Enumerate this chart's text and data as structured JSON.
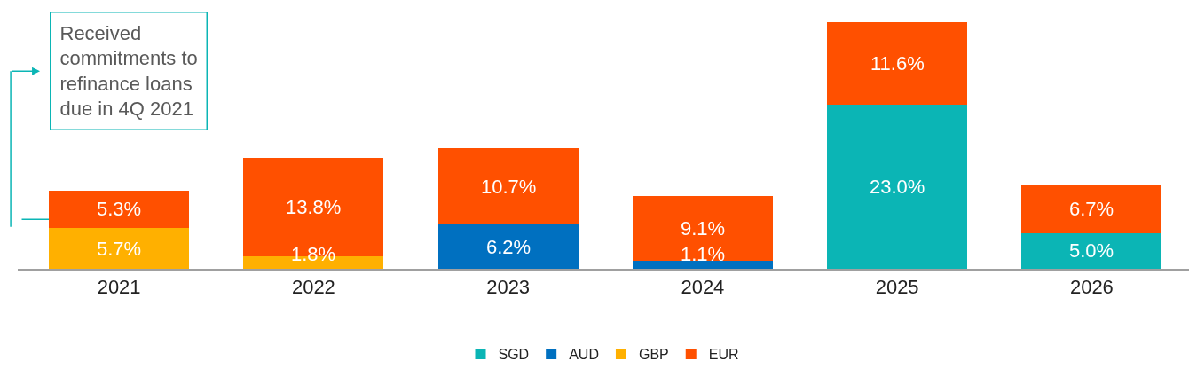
{
  "chart_data": {
    "type": "bar",
    "stacked": true,
    "legend": "bottom",
    "categories": [
      "2021",
      "2022",
      "2023",
      "2024",
      "2025",
      "2026"
    ],
    "series": [
      {
        "name": "SGD",
        "color": "#0bb5b5",
        "values": [
          null,
          null,
          null,
          null,
          23.0,
          5.0
        ],
        "value_labels": [
          null,
          null,
          null,
          null,
          "23.0%",
          "5.0%"
        ]
      },
      {
        "name": "AUD",
        "color": "#0070c0",
        "values": [
          null,
          null,
          6.2,
          1.1,
          null,
          null
        ],
        "value_labels": [
          null,
          null,
          "6.2%",
          "1.1%",
          null,
          null
        ]
      },
      {
        "name": "GBP",
        "color": "#ffb000",
        "values": [
          5.7,
          1.8,
          null,
          null,
          null,
          null
        ],
        "value_labels": [
          "5.7%",
          "1.8%",
          null,
          null,
          null,
          null
        ]
      },
      {
        "name": "EUR",
        "color": "#ff5000",
        "values": [
          5.3,
          13.8,
          10.7,
          9.1,
          11.6,
          6.7
        ],
        "value_labels": [
          "5.3%",
          "13.8%",
          "10.7%",
          "9.1%",
          "11.6%",
          "6.7%"
        ]
      }
    ],
    "annotations": [
      "Received\ncommitments to\nrefinance loans\ndue in 4Q 2021"
    ]
  }
}
